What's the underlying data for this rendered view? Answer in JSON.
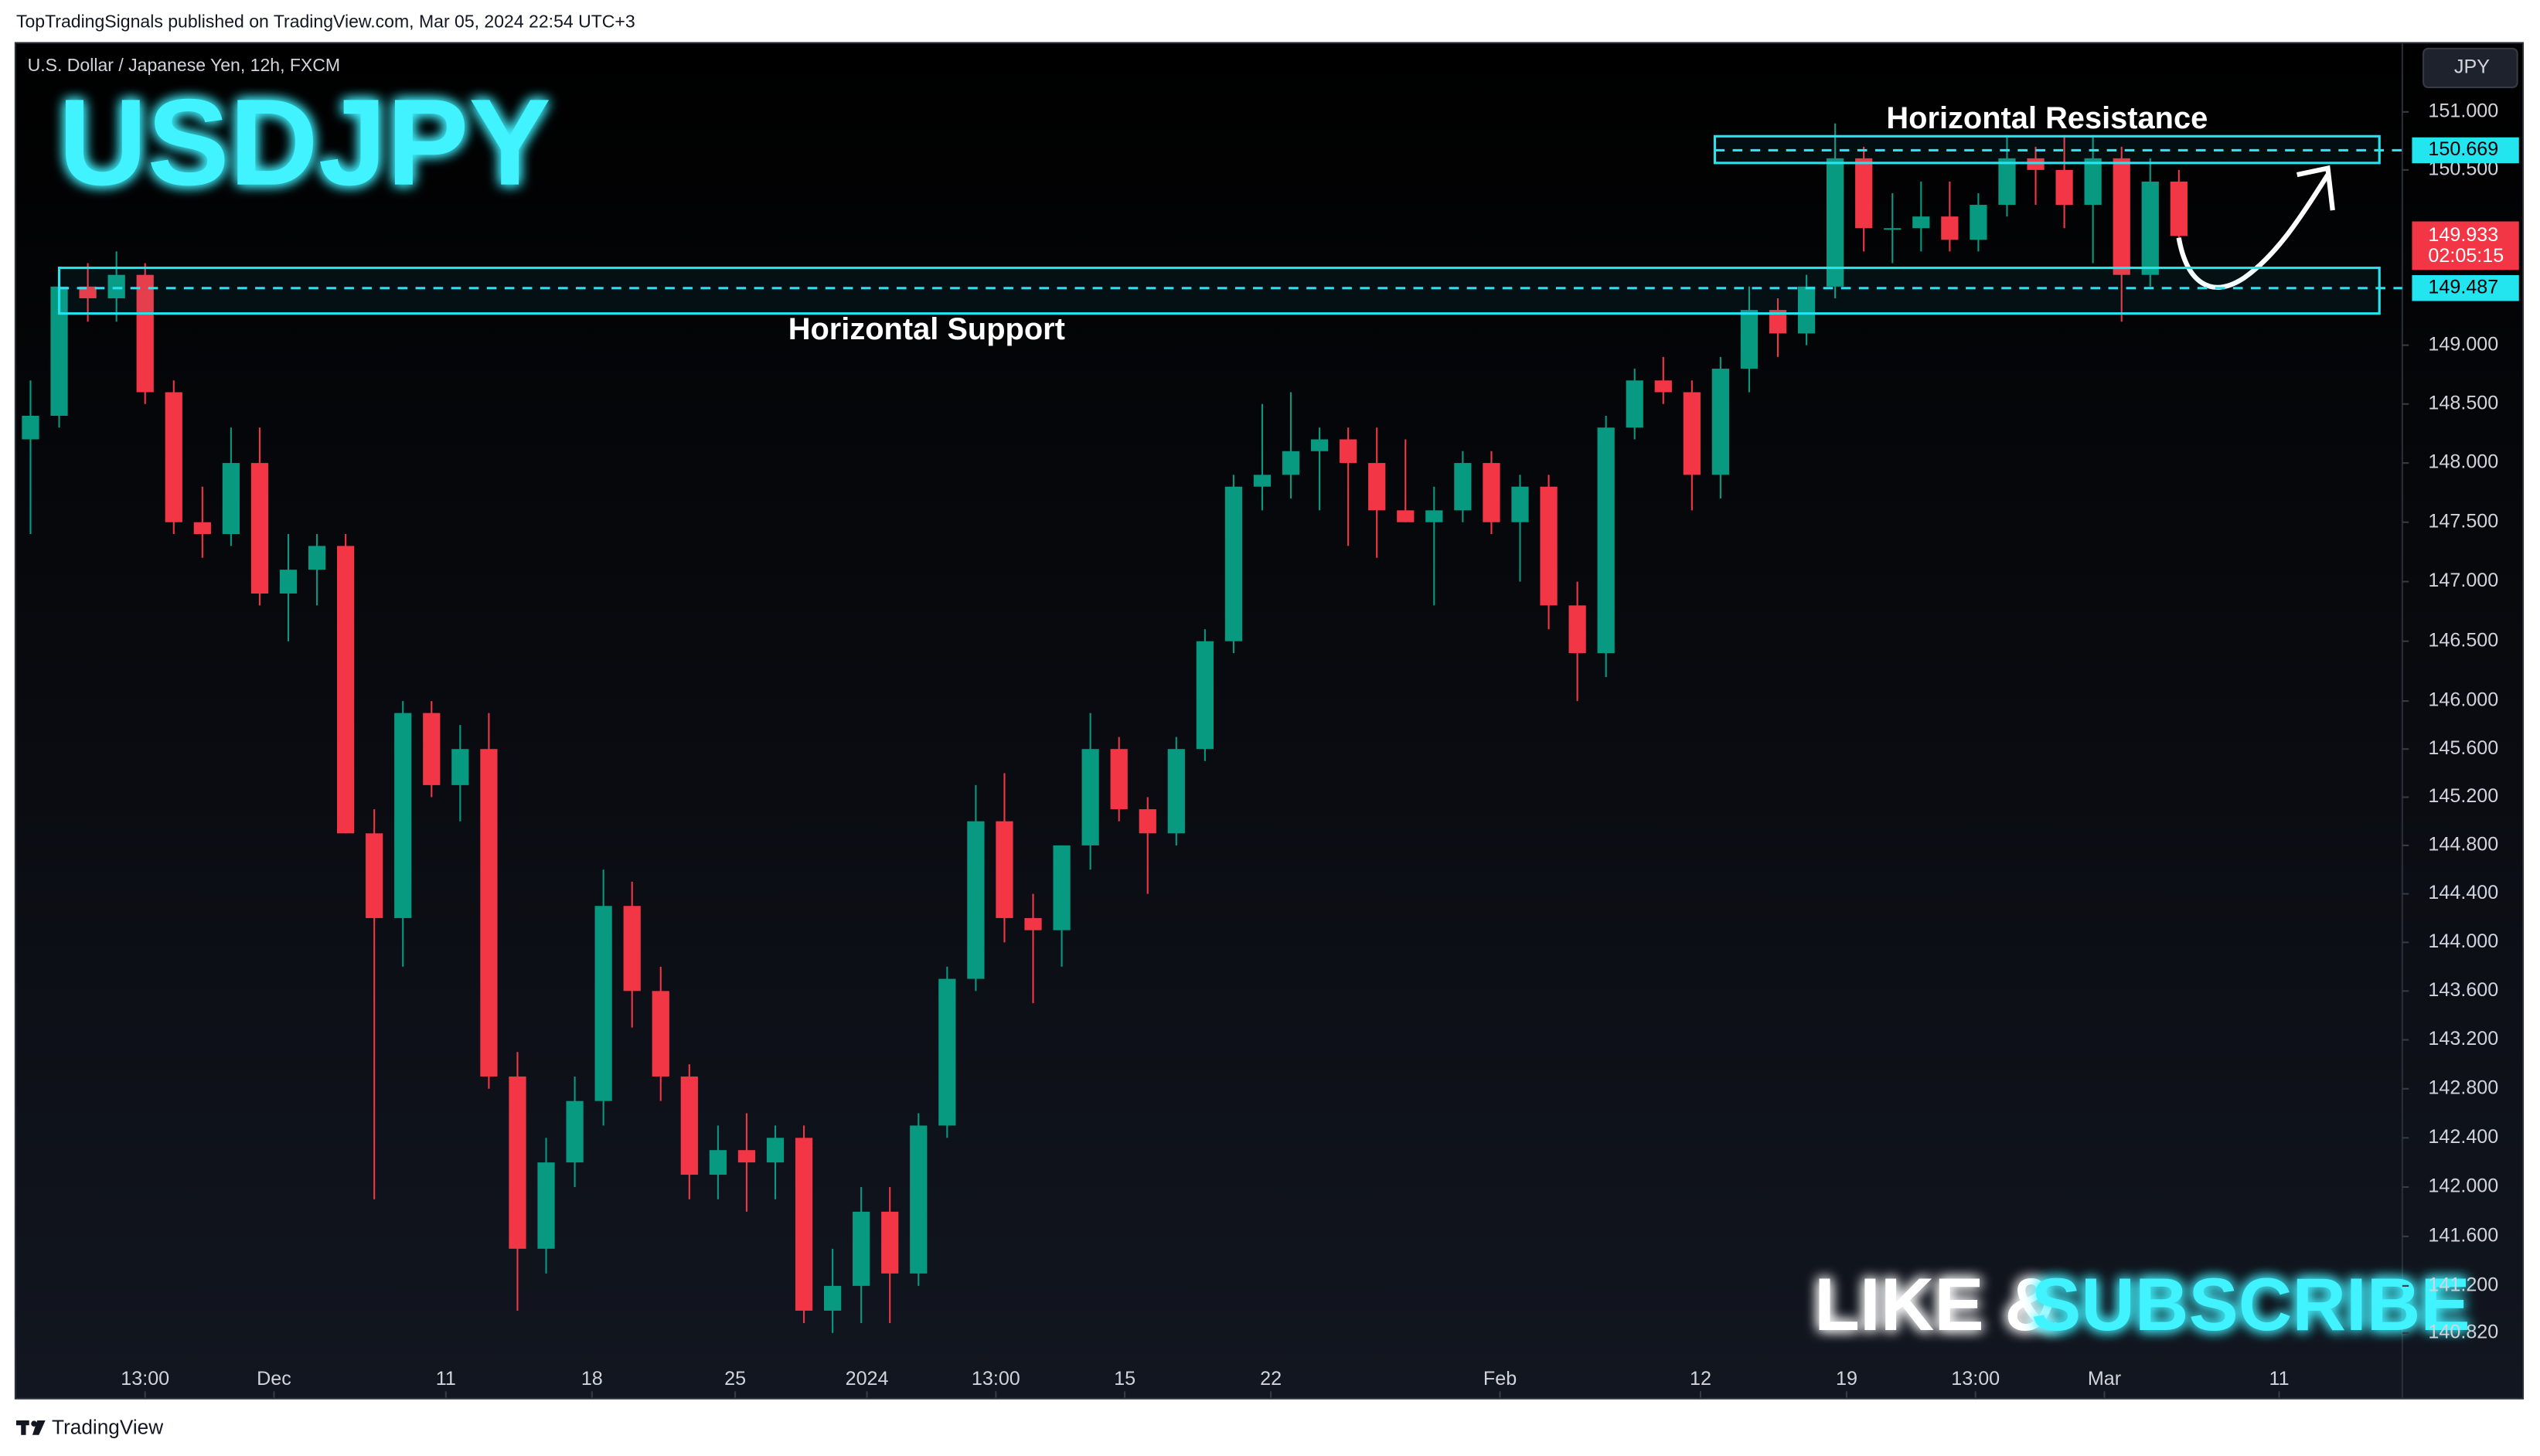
{
  "header": {
    "attribution": "TopTradingSignals published on TradingView.com, Mar 05, 2024 22:54 UTC+3",
    "footer": "TradingView"
  },
  "chart_data": {
    "type": "candlestick",
    "title": "USDJPY",
    "subtitle": "U.S. Dollar / Japanese Yen, 12h, FXCM",
    "currency": "JPY",
    "log_scale": true,
    "up_color": "#089981",
    "down_color": "#f23645",
    "zone_color": "#22e5f0",
    "candles": [
      [
        148.2,
        148.7,
        147.4,
        148.4
      ],
      [
        148.4,
        149.6,
        148.3,
        149.5
      ],
      [
        149.5,
        149.7,
        149.2,
        149.4
      ],
      [
        149.4,
        149.8,
        149.2,
        149.6
      ],
      [
        149.6,
        149.7,
        148.5,
        148.6
      ],
      [
        148.6,
        148.7,
        147.4,
        147.5
      ],
      [
        147.5,
        147.8,
        147.2,
        147.4
      ],
      [
        147.4,
        148.3,
        147.3,
        148.0
      ],
      [
        148.0,
        148.3,
        146.8,
        146.9
      ],
      [
        146.9,
        147.4,
        146.5,
        147.1
      ],
      [
        147.1,
        147.4,
        146.8,
        147.3
      ],
      [
        147.3,
        147.4,
        144.9,
        144.9
      ],
      [
        144.9,
        145.1,
        141.9,
        144.2
      ],
      [
        144.2,
        146.0,
        143.8,
        145.9
      ],
      [
        145.9,
        146.0,
        145.2,
        145.3
      ],
      [
        145.3,
        145.8,
        145.0,
        145.6
      ],
      [
        145.6,
        145.9,
        142.8,
        142.9
      ],
      [
        142.9,
        143.1,
        141.0,
        141.5
      ],
      [
        141.5,
        142.4,
        141.3,
        142.2
      ],
      [
        142.2,
        142.9,
        142.0,
        142.7
      ],
      [
        142.7,
        144.6,
        142.5,
        144.3
      ],
      [
        144.3,
        144.5,
        143.3,
        143.6
      ],
      [
        143.6,
        143.8,
        142.7,
        142.9
      ],
      [
        142.9,
        143.0,
        141.9,
        142.1
      ],
      [
        142.1,
        142.5,
        141.9,
        142.3
      ],
      [
        142.3,
        142.6,
        141.8,
        142.2
      ],
      [
        142.2,
        142.5,
        141.9,
        142.4
      ],
      [
        142.4,
        142.5,
        140.9,
        141.0
      ],
      [
        141.0,
        141.5,
        140.82,
        141.2
      ],
      [
        141.2,
        142.0,
        140.9,
        141.8
      ],
      [
        141.8,
        142.0,
        140.9,
        141.3
      ],
      [
        141.3,
        142.6,
        141.2,
        142.5
      ],
      [
        142.5,
        143.8,
        142.4,
        143.7
      ],
      [
        143.7,
        145.3,
        143.6,
        145.0
      ],
      [
        145.0,
        145.4,
        144.0,
        144.2
      ],
      [
        144.2,
        144.4,
        143.5,
        144.1
      ],
      [
        144.1,
        144.8,
        143.8,
        144.8
      ],
      [
        144.8,
        145.9,
        144.6,
        145.6
      ],
      [
        145.6,
        145.7,
        145.0,
        145.1
      ],
      [
        145.1,
        145.2,
        144.4,
        144.9
      ],
      [
        144.9,
        145.7,
        144.8,
        145.6
      ],
      [
        145.6,
        146.6,
        145.5,
        146.5
      ],
      [
        146.5,
        147.9,
        146.4,
        147.8
      ],
      [
        147.8,
        148.5,
        147.6,
        147.9
      ],
      [
        147.9,
        148.6,
        147.7,
        148.1
      ],
      [
        148.1,
        148.3,
        147.6,
        148.2
      ],
      [
        148.2,
        148.3,
        147.3,
        148.0
      ],
      [
        148.0,
        148.3,
        147.2,
        147.6
      ],
      [
        147.6,
        148.2,
        147.5,
        147.5
      ],
      [
        147.5,
        147.8,
        146.8,
        147.6
      ],
      [
        147.6,
        148.1,
        147.5,
        148.0
      ],
      [
        148.0,
        148.1,
        147.4,
        147.5
      ],
      [
        147.5,
        147.9,
        147.0,
        147.8
      ],
      [
        147.8,
        147.9,
        146.6,
        146.8
      ],
      [
        146.8,
        147.0,
        146.0,
        146.4
      ],
      [
        146.4,
        148.4,
        146.2,
        148.3
      ],
      [
        148.3,
        148.8,
        148.2,
        148.7
      ],
      [
        148.7,
        148.9,
        148.5,
        148.6
      ],
      [
        148.6,
        148.7,
        147.6,
        147.9
      ],
      [
        147.9,
        148.9,
        147.7,
        148.8
      ],
      [
        148.8,
        149.5,
        148.6,
        149.3
      ],
      [
        149.3,
        149.4,
        148.9,
        149.1
      ],
      [
        149.1,
        149.6,
        149.0,
        149.5
      ],
      [
        149.5,
        150.9,
        149.4,
        150.6
      ],
      [
        150.6,
        150.7,
        149.8,
        150.0
      ],
      [
        150.0,
        150.3,
        149.7,
        150.0
      ],
      [
        150.0,
        150.4,
        149.8,
        150.1
      ],
      [
        150.1,
        150.4,
        149.8,
        149.9
      ],
      [
        149.9,
        150.3,
        149.8,
        150.2
      ],
      [
        150.2,
        150.8,
        150.1,
        150.6
      ],
      [
        150.6,
        150.7,
        150.2,
        150.5
      ],
      [
        150.5,
        150.8,
        150.0,
        150.2
      ],
      [
        150.2,
        150.8,
        149.7,
        150.6
      ],
      [
        150.6,
        150.7,
        149.2,
        149.6
      ],
      [
        149.6,
        150.6,
        149.5,
        150.4
      ],
      [
        150.4,
        150.5,
        149.9,
        149.933
      ]
    ],
    "xlim": [
      -0.5,
      82.8
    ],
    "xticks": [
      {
        "value": 4,
        "label": "13:00"
      },
      {
        "value": 8.5,
        "label": "Dec"
      },
      {
        "value": 14.5,
        "label": "11"
      },
      {
        "value": 19.6,
        "label": "18"
      },
      {
        "value": 24.6,
        "label": "25"
      },
      {
        "value": 29.2,
        "label": "2024"
      },
      {
        "value": 33.7,
        "label": "13:00"
      },
      {
        "value": 38.2,
        "label": "15"
      },
      {
        "value": 43.3,
        "label": "22"
      },
      {
        "value": 51.3,
        "label": "Feb"
      },
      {
        "value": 58.3,
        "label": "12"
      },
      {
        "value": 63.4,
        "label": "19"
      },
      {
        "value": 67.9,
        "label": "13:00"
      },
      {
        "value": 72.4,
        "label": "Mar"
      },
      {
        "value": 78.5,
        "label": "11"
      }
    ],
    "ylim": [
      140.3,
      151.59
    ],
    "yticks": [
      {
        "value": 151,
        "label": "151.000"
      },
      {
        "value": 150.5,
        "label": "150.500"
      },
      {
        "value": 149,
        "label": "149.000"
      },
      {
        "value": 148.5,
        "label": "148.500"
      },
      {
        "value": 148,
        "label": "148.000"
      },
      {
        "value": 147.5,
        "label": "147.500"
      },
      {
        "value": 147,
        "label": "147.000"
      },
      {
        "value": 146.5,
        "label": "146.500"
      },
      {
        "value": 146,
        "label": "146.000"
      },
      {
        "value": 145.6,
        "label": "145.600"
      },
      {
        "value": 145.2,
        "label": "145.200"
      },
      {
        "value": 144.8,
        "label": "144.800"
      },
      {
        "value": 144.4,
        "label": "144.400"
      },
      {
        "value": 144,
        "label": "144.000"
      },
      {
        "value": 143.6,
        "label": "143.600"
      },
      {
        "value": 143.2,
        "label": "143.200"
      },
      {
        "value": 142.8,
        "label": "142.800"
      },
      {
        "value": 142.4,
        "label": "142.400"
      },
      {
        "value": 142,
        "label": "142.000"
      },
      {
        "value": 141.6,
        "label": "141.600"
      },
      {
        "value": 141.2,
        "label": "141.200"
      },
      {
        "value": 140.82,
        "label": "140.820"
      }
    ],
    "levels": [
      {
        "name": "Horizontal Resistance",
        "value": 150.669,
        "zone": [
          150.56,
          150.79
        ],
        "from": 58.8,
        "to": 82.0
      },
      {
        "name": "Horizontal Support",
        "value": 149.487,
        "zone": [
          149.27,
          149.66
        ],
        "from": 1.0,
        "to": 82.0
      }
    ],
    "last_price": 149.933,
    "countdown": "02:05:15",
    "call_to_action": [
      "LIKE &",
      "SUBSCRIBE"
    ]
  }
}
